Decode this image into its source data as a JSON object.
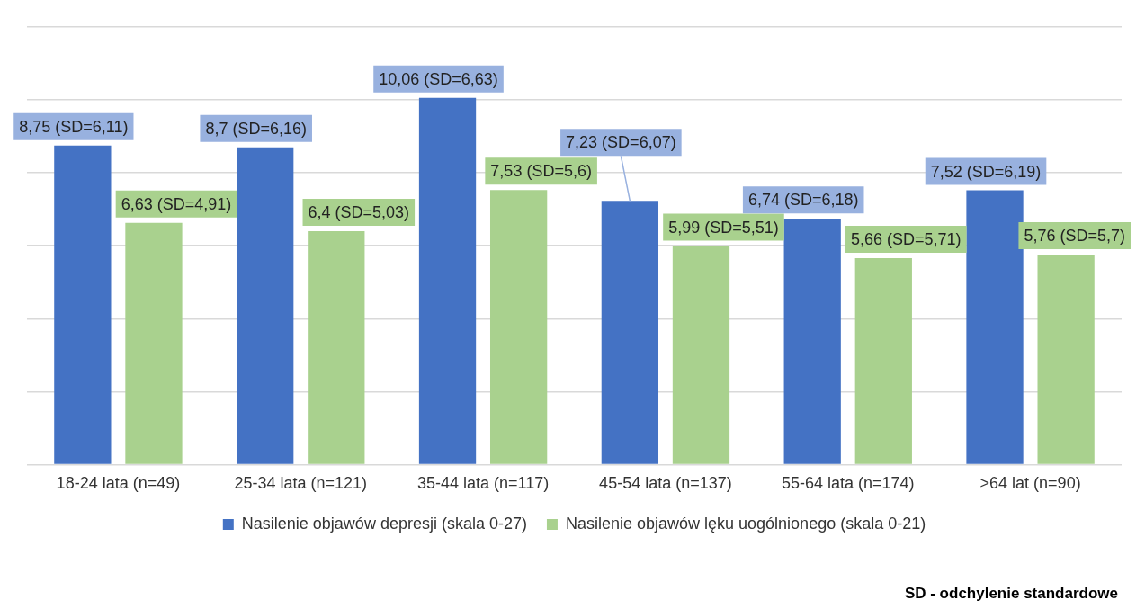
{
  "chart_data": {
    "type": "bar",
    "categories": [
      "18-24 lata (n=49)",
      "25-34 lata (n=121)",
      "35-44 lata (n=117)",
      "45-54 lata (n=137)",
      "55-64 lata (n=174)",
      ">64 lat (n=90)"
    ],
    "series": [
      {
        "name": "Nasilenie objawów depresji (skala 0-27)",
        "color": "#4472c4",
        "values": [
          8.75,
          8.7,
          10.06,
          7.23,
          6.74,
          7.52
        ],
        "value_labels": [
          "8,75 (SD=6,11)",
          "8,7 (SD=6,16)",
          "10,06 (SD=6,63)",
          "7,23 (SD=6,07)",
          "6,74 (SD=6,18)",
          "7,52 (SD=6,19)"
        ]
      },
      {
        "name": "Nasilenie objawów lęku uogólnionego (skala 0-21)",
        "color": "#a9d18e",
        "values": [
          6.63,
          6.4,
          7.53,
          5.99,
          5.66,
          5.76
        ],
        "value_labels": [
          "6,63 (SD=4,91)",
          "6,4 (SD=5,03)",
          "7,53 (SD=5,6)",
          "5,99 (SD=5,51)",
          "5,66 (SD=5,71)",
          "5,76 (SD=5,7)"
        ]
      }
    ],
    "ylim": [
      0,
      12
    ],
    "yticks": [
      {
        "value": 0,
        "label": null
      },
      {
        "value": 2,
        "label": null
      },
      {
        "value": 4,
        "label": null
      },
      {
        "value": 6,
        "label": null
      },
      {
        "value": 8,
        "label": null
      },
      {
        "value": 10,
        "label": null
      },
      {
        "value": 12,
        "label": null
      }
    ],
    "tick_labels": "x",
    "grid": "y",
    "legend": "bottom",
    "annotations": [
      "SD - odchylenie standardowe"
    ]
  }
}
